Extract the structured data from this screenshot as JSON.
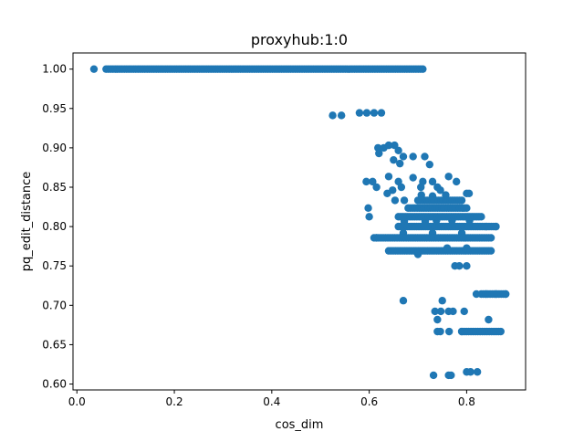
{
  "chart_data": {
    "type": "scatter",
    "title": "proxyhub:1:0",
    "xlabel": "cos_dim",
    "ylabel": "pq_edit_distance",
    "xlim": [
      -0.008,
      0.921
    ],
    "ylim": [
      0.5925,
      1.0205
    ],
    "xticks": [
      0.0,
      0.2,
      0.4,
      0.6,
      0.8
    ],
    "xtick_labels": [
      "0.0",
      "0.2",
      "0.4",
      "0.6",
      "0.8"
    ],
    "yticks": [
      0.6,
      0.65,
      0.7,
      0.75,
      0.8,
      0.85,
      0.9,
      0.95,
      1.0
    ],
    "ytick_labels": [
      "0.60",
      "0.65",
      "0.70",
      "0.75",
      "0.80",
      "0.85",
      "0.90",
      "0.95",
      "1.00"
    ],
    "grid": false,
    "legend": "none",
    "marker_color": "#1f77b4",
    "clusters": [
      {
        "y": 1.0,
        "x_from": 0.06,
        "x_to": 0.71
      },
      {
        "y": 0.7857,
        "x_from": 0.61,
        "x_to": 0.85
      },
      {
        "y": 0.7692,
        "x_from": 0.64,
        "x_to": 0.85
      },
      {
        "y": 0.8,
        "x_from": 0.66,
        "x_to": 0.86
      },
      {
        "y": 0.8125,
        "x_from": 0.66,
        "x_to": 0.83
      },
      {
        "y": 0.8235,
        "x_from": 0.68,
        "x_to": 0.8
      },
      {
        "y": 0.8333,
        "x_from": 0.7,
        "x_to": 0.79
      },
      {
        "y": 0.6667,
        "x_from": 0.79,
        "x_to": 0.87
      },
      {
        "y": 0.7143,
        "x_from": 0.83,
        "x_to": 0.88
      }
    ],
    "points": [
      [
        0.035,
        1.0
      ],
      [
        0.525,
        0.9412
      ],
      [
        0.543,
        0.9412
      ],
      [
        0.58,
        0.9444
      ],
      [
        0.595,
        0.9444
      ],
      [
        0.61,
        0.9444
      ],
      [
        0.625,
        0.9444
      ],
      [
        0.618,
        0.9
      ],
      [
        0.63,
        0.9
      ],
      [
        0.64,
        0.9032
      ],
      [
        0.652,
        0.9032
      ],
      [
        0.66,
        0.8966
      ],
      [
        0.67,
        0.8889
      ],
      [
        0.69,
        0.8889
      ],
      [
        0.714,
        0.8889
      ],
      [
        0.724,
        0.8788
      ],
      [
        0.62,
        0.8929
      ],
      [
        0.65,
        0.8846
      ],
      [
        0.663,
        0.88
      ],
      [
        0.594,
        0.8571
      ],
      [
        0.607,
        0.8571
      ],
      [
        0.64,
        0.8636
      ],
      [
        0.66,
        0.8571
      ],
      [
        0.69,
        0.8621
      ],
      [
        0.71,
        0.8571
      ],
      [
        0.73,
        0.8571
      ],
      [
        0.763,
        0.8636
      ],
      [
        0.779,
        0.8571
      ],
      [
        0.615,
        0.85
      ],
      [
        0.648,
        0.8462
      ],
      [
        0.666,
        0.85
      ],
      [
        0.706,
        0.85
      ],
      [
        0.74,
        0.85
      ],
      [
        0.746,
        0.8462
      ],
      [
        0.637,
        0.8421
      ],
      [
        0.653,
        0.8333
      ],
      [
        0.672,
        0.8333
      ],
      [
        0.707,
        0.84
      ],
      [
        0.73,
        0.8387
      ],
      [
        0.757,
        0.84
      ],
      [
        0.8,
        0.8421
      ],
      [
        0.805,
        0.8421
      ],
      [
        0.598,
        0.8235
      ],
      [
        0.6,
        0.8125
      ],
      [
        0.615,
        0.7857
      ],
      [
        0.672,
        0.8065
      ],
      [
        0.715,
        0.8065
      ],
      [
        0.738,
        0.8077
      ],
      [
        0.77,
        0.8077
      ],
      [
        0.806,
        0.8077
      ],
      [
        0.67,
        0.7917
      ],
      [
        0.73,
        0.7917
      ],
      [
        0.79,
        0.7917
      ],
      [
        0.84,
        0.8
      ],
      [
        0.86,
        0.8
      ],
      [
        0.7,
        0.7647
      ],
      [
        0.76,
        0.7727
      ],
      [
        0.8,
        0.7727
      ],
      [
        0.776,
        0.75
      ],
      [
        0.785,
        0.75
      ],
      [
        0.8,
        0.75
      ],
      [
        0.67,
        0.7059
      ],
      [
        0.735,
        0.6923
      ],
      [
        0.747,
        0.6923
      ],
      [
        0.763,
        0.6923
      ],
      [
        0.772,
        0.6923
      ],
      [
        0.795,
        0.6923
      ],
      [
        0.75,
        0.7059
      ],
      [
        0.74,
        0.6667
      ],
      [
        0.746,
        0.6667
      ],
      [
        0.764,
        0.6667
      ],
      [
        0.79,
        0.6667
      ],
      [
        0.82,
        0.7143
      ],
      [
        0.84,
        0.7143
      ],
      [
        0.86,
        0.7143
      ],
      [
        0.88,
        0.7143
      ],
      [
        0.74,
        0.6818
      ],
      [
        0.845,
        0.6818
      ],
      [
        0.732,
        0.6111
      ],
      [
        0.763,
        0.6111
      ],
      [
        0.768,
        0.6111
      ],
      [
        0.8,
        0.6154
      ],
      [
        0.808,
        0.6154
      ],
      [
        0.822,
        0.6154
      ]
    ]
  }
}
